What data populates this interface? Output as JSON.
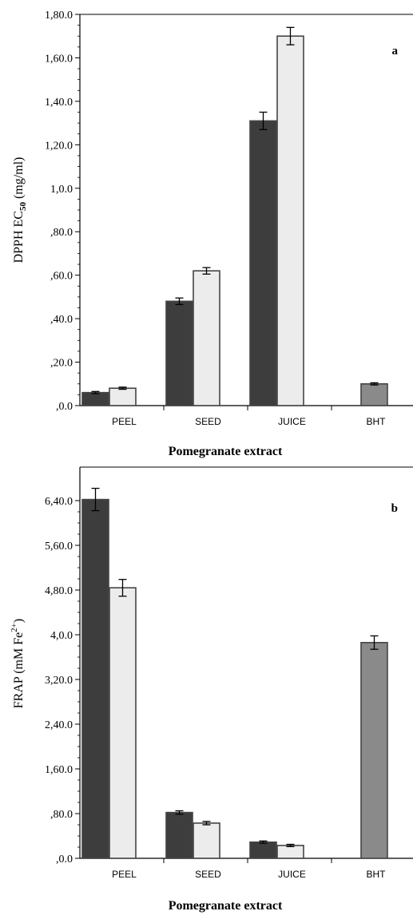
{
  "chart_data": [
    {
      "type": "bar",
      "panel_label": "a",
      "categories": [
        "PEEL",
        "SEED",
        "JUICE",
        "BHT"
      ],
      "series": [
        {
          "values": [
            0.06,
            0.48,
            1.31,
            null
          ],
          "errors": [
            0.005,
            0.015,
            0.04,
            null
          ],
          "color": "#3d3d3d"
        },
        {
          "values": [
            0.08,
            0.62,
            1.7,
            null
          ],
          "errors": [
            0.005,
            0.015,
            0.04,
            null
          ],
          "color": "#ececec"
        },
        {
          "values": [
            null,
            null,
            null,
            0.1
          ],
          "errors": [
            null,
            null,
            null,
            0.005
          ],
          "color": "#8a8a8a"
        }
      ],
      "xlabel": "Pomegranate extract",
      "ylabel_main": "DPPH EC",
      "ylabel_sub": "50",
      "ylabel_unit": " (mg/ml)",
      "ylim": [
        0,
        1.8
      ],
      "yticks": [
        0,
        0.2,
        0.4,
        0.6,
        0.8,
        1.0,
        1.2,
        1.4,
        1.6,
        1.8
      ],
      "ytick_labels": [
        ",0.0",
        ",20.0",
        ",40.0",
        ",60.0",
        ",80.0",
        "1,0.0",
        "1,20.0",
        "1,40.0",
        "1,60.0",
        "1,80.0"
      ]
    },
    {
      "type": "bar",
      "panel_label": "b",
      "categories": [
        "PEEL",
        "SEED",
        "JUICE",
        "BHT"
      ],
      "series": [
        {
          "values": [
            6.42,
            0.82,
            0.29,
            null
          ],
          "errors": [
            0.2,
            0.03,
            0.02,
            null
          ],
          "color": "#3d3d3d"
        },
        {
          "values": [
            4.84,
            0.63,
            0.23,
            null
          ],
          "errors": [
            0.15,
            0.03,
            0.02,
            null
          ],
          "color": "#ececec"
        },
        {
          "values": [
            null,
            null,
            null,
            3.86
          ],
          "errors": [
            null,
            null,
            null,
            0.12
          ],
          "color": "#8a8a8a"
        }
      ],
      "xlabel": "Pomegranate extract",
      "ylabel_main": "FRAP (mM Fe",
      "ylabel_sup": "2+",
      "ylabel_unit": ")",
      "ylim": [
        0,
        7.0
      ],
      "yticks": [
        0,
        0.8,
        1.6,
        2.4,
        3.2,
        4.0,
        4.8,
        5.6,
        6.4
      ],
      "ytick_labels": [
        ",0.0",
        ",80.0",
        "1,60.0",
        "2,40.0",
        "3,20.0",
        "4,0.0",
        "4,80.0",
        "5,60.0",
        "6,40.0"
      ]
    }
  ]
}
